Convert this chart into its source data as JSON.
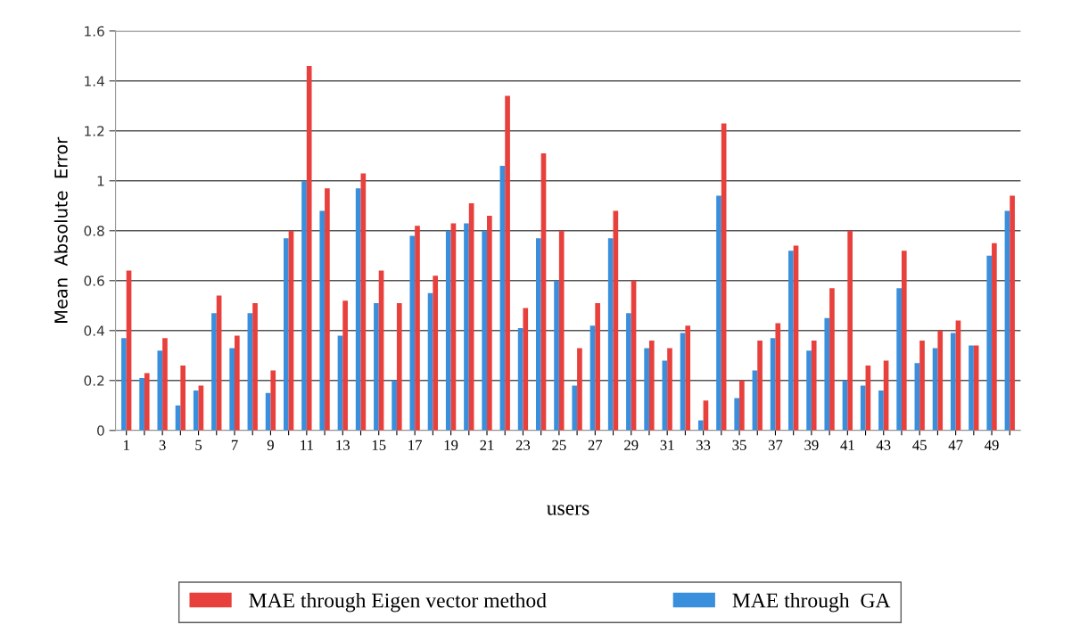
{
  "chart_data": {
    "type": "bar",
    "xlabel": "users",
    "ylabel": "Mean  Absolute  Error",
    "categories": [
      "1",
      null,
      "3",
      null,
      "5",
      null,
      "7",
      null,
      "9",
      null,
      "11",
      null,
      "13",
      null,
      "15",
      null,
      "17",
      null,
      "19",
      null,
      "21",
      null,
      "23",
      null,
      "25",
      null,
      "27",
      null,
      "29",
      null,
      "31",
      null,
      "33",
      null,
      "35",
      null,
      "37",
      null,
      "39",
      null,
      "41",
      null,
      "43",
      null,
      "45",
      null,
      "47",
      null,
      "49",
      null
    ],
    "series": [
      {
        "name": "MAE through  GA",
        "color": "#3a8fdc",
        "values": [
          0.37,
          0.21,
          0.32,
          0.1,
          0.16,
          0.47,
          0.33,
          0.47,
          0.15,
          0.77,
          1.0,
          0.88,
          0.38,
          0.97,
          0.51,
          0.2,
          0.78,
          0.55,
          0.8,
          0.83,
          0.8,
          1.06,
          0.41,
          0.77,
          0.6,
          0.18,
          0.42,
          0.77,
          0.47,
          0.33,
          0.28,
          0.39,
          0.04,
          0.94,
          0.13,
          0.24,
          0.37,
          0.72,
          0.32,
          0.45,
          0.2,
          0.18,
          0.16,
          0.57,
          0.27,
          0.33,
          0.39,
          0.34,
          0.7,
          0.88
        ]
      },
      {
        "name": "MAE through Eigen vector method",
        "color": "#e8403c",
        "values": [
          0.64,
          0.23,
          0.37,
          0.26,
          0.18,
          0.54,
          0.38,
          0.51,
          0.24,
          0.8,
          1.46,
          0.97,
          0.52,
          1.03,
          0.64,
          0.51,
          0.82,
          0.62,
          0.83,
          0.91,
          0.86,
          1.34,
          0.49,
          1.11,
          0.8,
          0.33,
          0.51,
          0.88,
          0.6,
          0.36,
          0.33,
          0.42,
          0.12,
          1.23,
          0.2,
          0.36,
          0.43,
          0.74,
          0.36,
          0.57,
          0.8,
          0.26,
          0.28,
          0.72,
          0.36,
          0.4,
          0.44,
          0.34,
          0.75,
          0.94
        ]
      }
    ],
    "ylim": [
      0,
      1.6
    ],
    "yticks": [
      0,
      0.2,
      0.4,
      0.6,
      0.8,
      1,
      1.2,
      1.4,
      1.6
    ],
    "grid": "y",
    "legend": "bottom"
  }
}
